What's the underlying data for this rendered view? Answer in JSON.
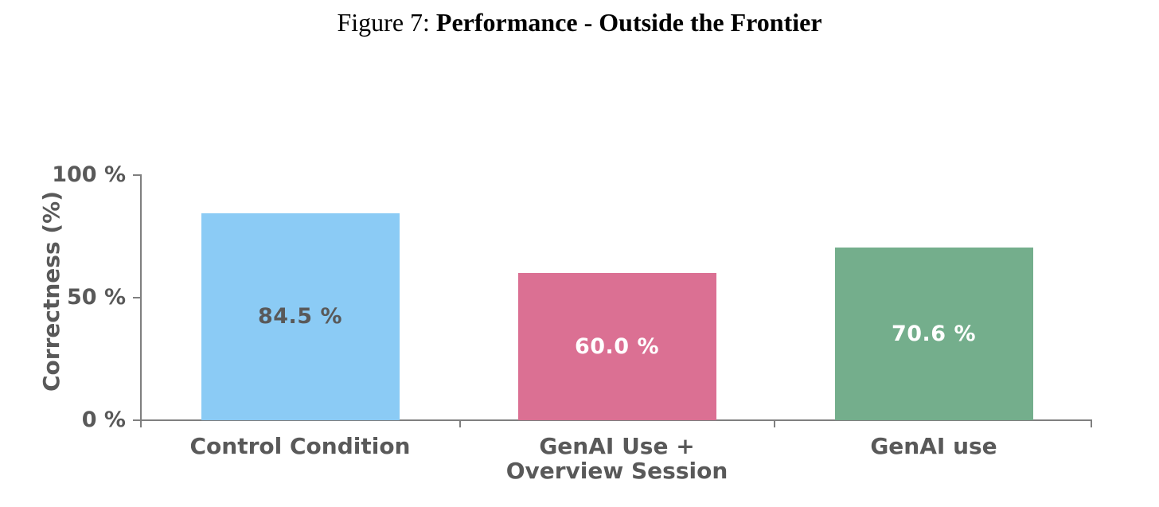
{
  "figure": {
    "title_prefix": "Figure 7: ",
    "title_main": "Performance - Outside the Frontier"
  },
  "chart_data": {
    "type": "bar",
    "title": "Figure 7: Performance - Outside the Frontier",
    "xlabel": "",
    "ylabel": "Correctness (%)",
    "ylim": [
      0,
      100
    ],
    "grid": false,
    "legend_position": "none",
    "y_ticks": [
      {
        "value": 100,
        "label": "100 %"
      },
      {
        "value": 50,
        "label": "50 %"
      },
      {
        "value": 0,
        "label": "0 %"
      }
    ],
    "categories": [
      "Control Condition",
      "GenAI Use +\nOverview Session",
      "GenAI use"
    ],
    "values": [
      84.5,
      60.0,
      70.6
    ],
    "bars": [
      {
        "category": "Control Condition",
        "value": 84.5,
        "display_value": "84.5 %",
        "color": "#8bcbf5",
        "label_color": "#595959"
      },
      {
        "category": "GenAI Use +\nOverview Session",
        "value": 60.0,
        "display_value": "60.0 %",
        "color": "#db7093",
        "label_color": "#ffffff"
      },
      {
        "category": "GenAI use",
        "value": 70.6,
        "display_value": "70.6 %",
        "color": "#74ae8c",
        "label_color": "#ffffff"
      }
    ],
    "axis_color": "#7f7f7f",
    "text_color": "#595959"
  }
}
